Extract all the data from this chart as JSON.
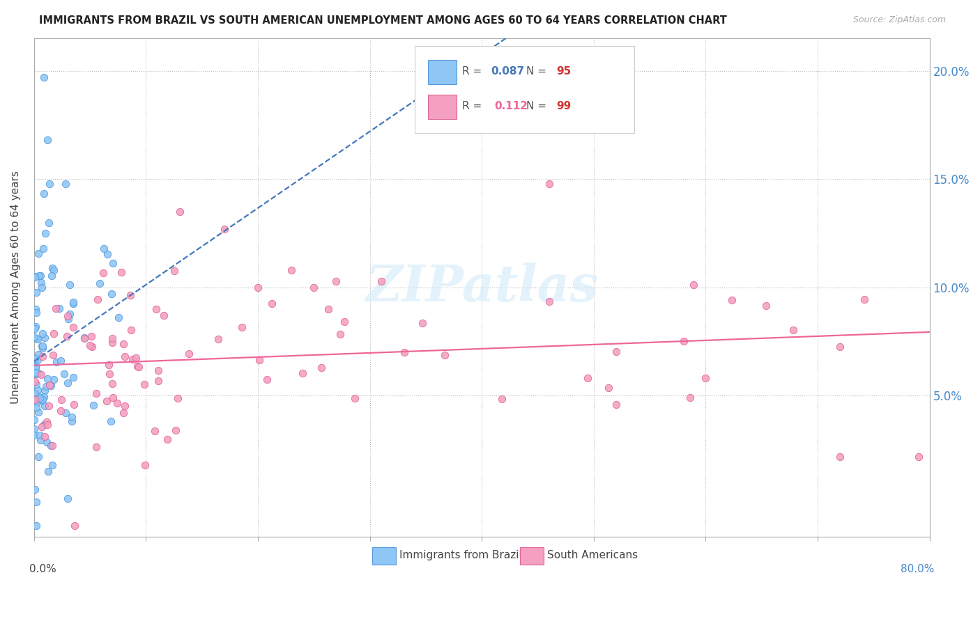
{
  "title": "IMMIGRANTS FROM BRAZIL VS SOUTH AMERICAN UNEMPLOYMENT AMONG AGES 60 TO 64 YEARS CORRELATION CHART",
  "source": "Source: ZipAtlas.com",
  "ylabel": "Unemployment Among Ages 60 to 64 years",
  "xlim": [
    0.0,
    0.8
  ],
  "ylim": [
    -0.015,
    0.215
  ],
  "yticks": [
    0.05,
    0.1,
    0.15,
    0.2
  ],
  "ytick_labels": [
    "5.0%",
    "10.0%",
    "15.0%",
    "20.0%"
  ],
  "brazil_color": "#8ec6f5",
  "brazil_edge": "#5599dd",
  "south_america_color": "#f5a0c0",
  "south_america_edge": "#dd6699",
  "brazil_R": 0.087,
  "brazil_N": 95,
  "south_america_R": 0.112,
  "south_america_N": 99,
  "watermark": "ZIPatlas",
  "brazil_trend_color": "#4477bb",
  "south_america_trend_color": "#ee6699"
}
